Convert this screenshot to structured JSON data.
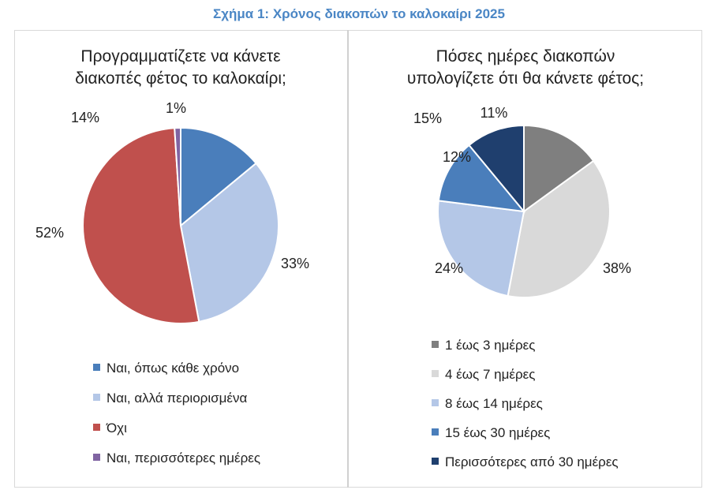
{
  "figure_title": "Σχήμα 1: Χρόνος διακοπών το καλοκαίρι 2025",
  "chart_data": [
    {
      "type": "pie",
      "title_lines": [
        "Προγραμματίζετε να κάνετε",
        "διακοπές φέτος το καλοκαίρι;"
      ],
      "categories": [
        "Ναι, όπως κάθε χρόνο",
        "Ναι, αλλά περιορισμένα",
        "Όχι",
        "Ναι, περισσότερες ημέρες"
      ],
      "values": [
        14,
        33,
        52,
        1
      ],
      "labels": [
        "14%",
        "33%",
        "52%",
        "1%"
      ],
      "colors": [
        "#4a7ebb",
        "#b4c7e7",
        "#c0504d",
        "#8064a2"
      ],
      "legend": "bottom"
    },
    {
      "type": "pie",
      "title_lines": [
        "Πόσες ημέρες διακοπών",
        "υπολογίζετε ότι θα κάνετε φέτος;"
      ],
      "categories": [
        "1 έως 3 ημέρες",
        "4 έως 7 ημέρες",
        "8 έως 14 ημέρες",
        "15 έως 30 ημέρες",
        "Περισσότερες από 30 ημέρες"
      ],
      "values": [
        15,
        38,
        24,
        12,
        11
      ],
      "labels": [
        "15%",
        "38%",
        "24%",
        "12%",
        "11%"
      ],
      "colors": [
        "#7f7f7f",
        "#d9d9d9",
        "#b4c7e7",
        "#4a7ebb",
        "#1f3f6e"
      ],
      "legend": "bottom"
    }
  ]
}
